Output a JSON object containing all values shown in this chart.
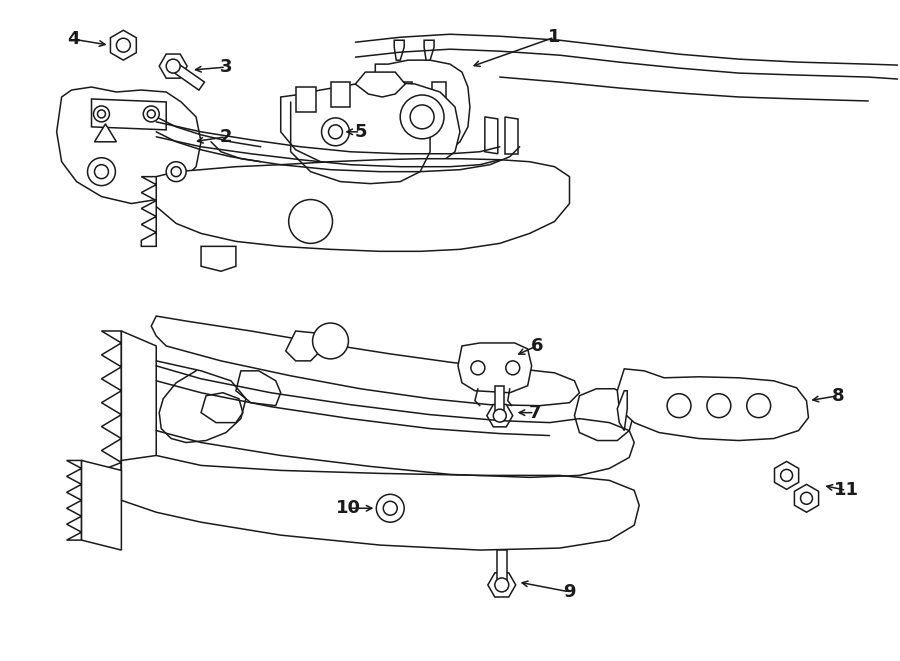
{
  "bg_color": "#ffffff",
  "line_color": "#1a1a1a",
  "fig_width": 9.0,
  "fig_height": 6.61,
  "dpi": 100,
  "label_fontsize": 13,
  "arrow_lw": 1.0
}
